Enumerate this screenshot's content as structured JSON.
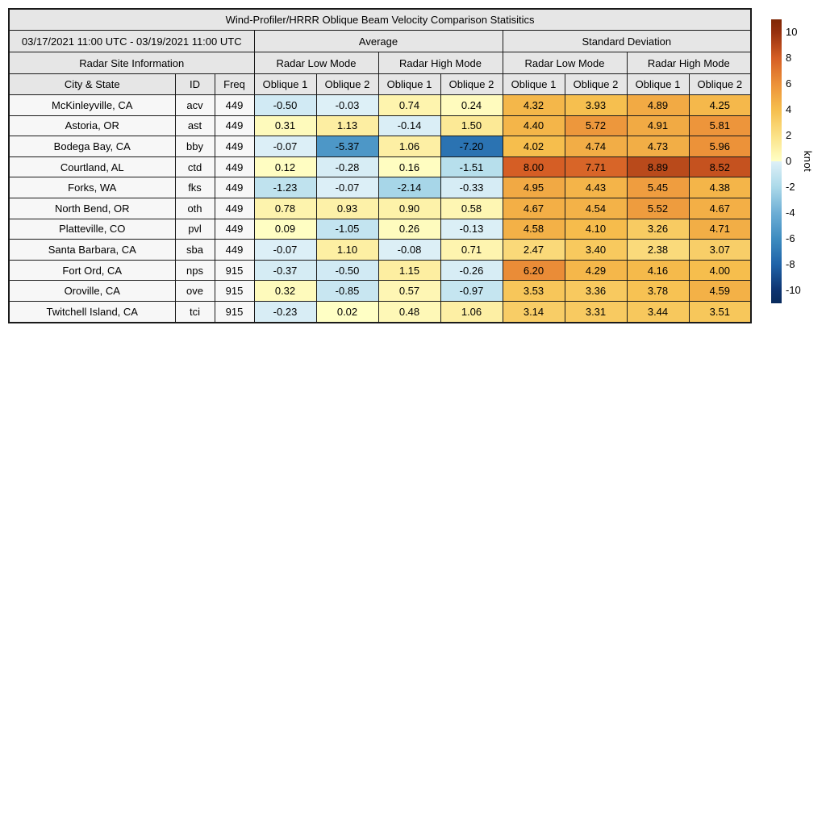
{
  "chart_data": {
    "type": "heatmap",
    "title": "Wind-Profiler/HRRR Oblique Beam Velocity Comparison Statisitics",
    "date_range": "03/17/2021 11:00 UTC - 03/19/2021 11:00 UTC",
    "sections": {
      "average": "Average",
      "standard_deviation": "Standard Deviation"
    },
    "headers": {
      "site_info": "Radar Site Information",
      "low_mode": "Radar Low Mode",
      "high_mode": "Radar High Mode",
      "city": "City & State",
      "id": "ID",
      "freq": "Freq",
      "oblique1": "Oblique 1",
      "oblique2": "Oblique 2"
    },
    "columns": [
      "City & State",
      "ID",
      "Freq",
      "Average Low Oblique 1",
      "Average Low Oblique 2",
      "Average High Oblique 1",
      "Average High Oblique 2",
      "StdDev Low Oblique 1",
      "StdDev Low Oblique 2",
      "StdDev High Oblique 1",
      "StdDev High Oblique 2"
    ],
    "rows": [
      {
        "city": "McKinleyville, CA",
        "id": "acv",
        "freq": "449",
        "values": [
          -0.5,
          -0.03,
          0.74,
          0.24,
          4.32,
          3.93,
          4.89,
          4.25
        ]
      },
      {
        "city": "Astoria, OR",
        "id": "ast",
        "freq": "449",
        "values": [
          0.31,
          1.13,
          -0.14,
          1.5,
          4.4,
          5.72,
          4.91,
          5.81
        ]
      },
      {
        "city": "Bodega Bay, CA",
        "id": "bby",
        "freq": "449",
        "values": [
          -0.07,
          -5.37,
          1.06,
          -7.2,
          4.02,
          4.74,
          4.73,
          5.96
        ]
      },
      {
        "city": "Courtland, AL",
        "id": "ctd",
        "freq": "449",
        "values": [
          0.12,
          -0.28,
          0.16,
          -1.51,
          8.0,
          7.71,
          8.89,
          8.52
        ]
      },
      {
        "city": "Forks, WA",
        "id": "fks",
        "freq": "449",
        "values": [
          -1.23,
          -0.07,
          -2.14,
          -0.33,
          4.95,
          4.43,
          5.45,
          4.38
        ]
      },
      {
        "city": "North Bend, OR",
        "id": "oth",
        "freq": "449",
        "values": [
          0.78,
          0.93,
          0.9,
          0.58,
          4.67,
          4.54,
          5.52,
          4.67
        ]
      },
      {
        "city": "Platteville, CO",
        "id": "pvl",
        "freq": "449",
        "values": [
          0.09,
          -1.05,
          0.26,
          -0.13,
          4.58,
          4.1,
          3.26,
          4.71
        ]
      },
      {
        "city": "Santa Barbara, CA",
        "id": "sba",
        "freq": "449",
        "values": [
          -0.07,
          1.1,
          -0.08,
          0.71,
          2.47,
          3.4,
          2.38,
          3.07
        ]
      },
      {
        "city": "Fort Ord, CA",
        "id": "nps",
        "freq": "915",
        "values": [
          -0.37,
          -0.5,
          1.15,
          -0.26,
          6.2,
          4.29,
          4.16,
          4.0
        ]
      },
      {
        "city": "Oroville, CA",
        "id": "ove",
        "freq": "915",
        "values": [
          0.32,
          -0.85,
          0.57,
          -0.97,
          3.53,
          3.36,
          3.78,
          4.59
        ]
      },
      {
        "city": "Twitchell Island, CA",
        "id": "tci",
        "freq": "915",
        "values": [
          -0.23,
          0.02,
          0.48,
          1.06,
          3.14,
          3.31,
          3.44,
          3.51
        ]
      }
    ],
    "colorbar": {
      "label": "knot",
      "vmin": -10,
      "vmax": 10,
      "ticks": [
        10,
        8,
        6,
        4,
        2,
        0,
        -2,
        -4,
        -6,
        -8,
        -10
      ],
      "positive_stops": [
        {
          "v": 0,
          "c": "#ffffc6"
        },
        {
          "v": 2,
          "c": "#fbe186"
        },
        {
          "v": 4,
          "c": "#f6be4d"
        },
        {
          "v": 6,
          "c": "#ec9139"
        },
        {
          "v": 8,
          "c": "#d55e25"
        },
        {
          "v": 10,
          "c": "#96300e"
        },
        {
          "v": 11,
          "c": "#7f2704"
        }
      ],
      "negative_stops": [
        {
          "v": 0,
          "c": "#def0f7"
        },
        {
          "v": -2,
          "c": "#abd9e9"
        },
        {
          "v": -4,
          "c": "#6daed5"
        },
        {
          "v": -6,
          "c": "#3e8cc0"
        },
        {
          "v": -8,
          "c": "#1f63a8"
        },
        {
          "v": -10,
          "c": "#0d3370"
        },
        {
          "v": -11,
          "c": "#082a5c"
        }
      ]
    },
    "style_colors": {
      "header_bg": "#e6e6e6",
      "site_cell_bg": "#f7f7f7",
      "border": "#1a1a1a"
    }
  }
}
